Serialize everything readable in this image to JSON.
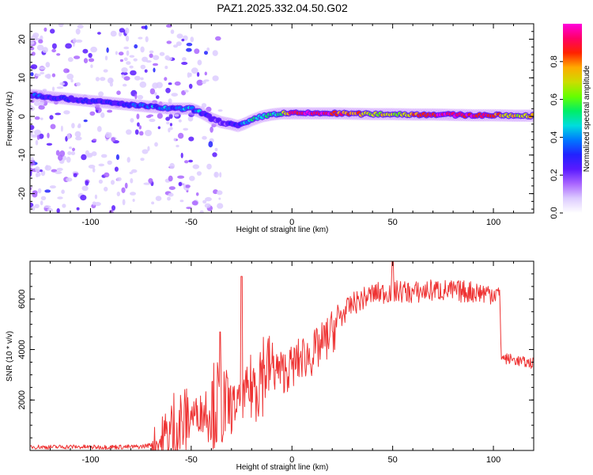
{
  "figure_title": "PAZ1.2025.332.04.50.G02",
  "colors": {
    "snr_line": "#ee3333",
    "frame": "#000000",
    "colormap": [
      "#ffffff",
      "#ddccff",
      "#aa66ff",
      "#5a1aff",
      "#2222ff",
      "#0077ff",
      "#00dddd",
      "#00ee66",
      "#66ff00",
      "#ccdd00",
      "#ffaa00",
      "#ff2200",
      "#ff0066",
      "#ff00dd"
    ]
  },
  "chart_data": [
    {
      "type": "heatmap",
      "title": "",
      "xlabel": "Height of straight line (km)",
      "ylabel": "Frequency (Hz)",
      "xlim": [
        -130,
        120
      ],
      "ylim": [
        -25,
        24
      ],
      "xticks": [
        -100,
        -50,
        0,
        50,
        100
      ],
      "xtick_labels": [
        "-100",
        "-50",
        "0",
        "50",
        "100"
      ],
      "yticks": [
        -20,
        -10,
        0,
        10,
        20
      ],
      "ytick_labels": [
        "-20",
        "-10",
        "0",
        "10",
        "20"
      ],
      "ridge": {
        "description": "dominant spectral component frequency vs height",
        "x": [
          -128,
          -120,
          -110,
          -100,
          -90,
          -80,
          -70,
          -60,
          -50,
          -45,
          -40,
          -35,
          -30,
          -27,
          -24,
          -20,
          -15,
          -10,
          -5,
          0,
          10,
          20,
          30,
          40,
          50,
          60,
          70,
          80,
          90,
          100,
          110,
          120
        ],
        "frequency": [
          5.5,
          5,
          4.5,
          4,
          3.5,
          3,
          2.5,
          2,
          2,
          1,
          -0.5,
          -1.5,
          -2,
          -2.5,
          -2,
          -1,
          0,
          0.5,
          0.8,
          0.8,
          0.8,
          0.8,
          0.7,
          0.6,
          0.6,
          0.5,
          0.5,
          0.4,
          0.3,
          0.3,
          0.2,
          0.2
        ],
        "amplitude": [
          0.3,
          0.3,
          0.28,
          0.27,
          0.3,
          0.32,
          0.38,
          0.4,
          0.38,
          0.35,
          0.22,
          0.22,
          0.25,
          0.3,
          0.45,
          0.5,
          0.5,
          0.5,
          0.55,
          0.95,
          0.95,
          0.9,
          0.8,
          0.7,
          0.65,
          0.75,
          0.9,
          0.95,
          0.95,
          0.8,
          0.7,
          0.7
        ]
      },
      "colorbar": {
        "label": "Normalized spectral amplitude",
        "range": [
          0,
          1
        ],
        "ticks": [
          0,
          0.2,
          0.4,
          0.6,
          0.8
        ],
        "tick_labels": [
          "0.0",
          "0.2",
          "0.4",
          "0.6",
          "0.8"
        ]
      }
    },
    {
      "type": "line",
      "title": "",
      "xlabel": "Height of straight line (km)",
      "ylabel": "SNR (10 * v/v)",
      "xlim": [
        -130,
        120
      ],
      "ylim": [
        0,
        7500
      ],
      "xticks": [
        -100,
        -50,
        0,
        50,
        100
      ],
      "xtick_labels": [
        "-100",
        "-50",
        "0",
        "50",
        "100"
      ],
      "yticks": [
        2000,
        4000,
        6000
      ],
      "ytick_labels": [
        "2000",
        "4000",
        "6000"
      ],
      "series": [
        {
          "name": "SNR",
          "x": [
            -130,
            -120,
            -110,
            -100,
            -90,
            -80,
            -75,
            -70,
            -65,
            -60,
            -55,
            -50,
            -45,
            -40,
            -35,
            -30,
            -25,
            -20,
            -15,
            -10,
            -5,
            0,
            5,
            10,
            15,
            20,
            25,
            30,
            35,
            40,
            45,
            50,
            55,
            60,
            65,
            70,
            75,
            80,
            85,
            90,
            95,
            100,
            103,
            104,
            105,
            110,
            115,
            120
          ],
          "y": [
            150,
            130,
            150,
            130,
            140,
            140,
            150,
            220,
            350,
            600,
            1000,
            1400,
            1500,
            1800,
            1800,
            1700,
            2000,
            2500,
            3200,
            3300,
            3100,
            3300,
            3700,
            3800,
            4200,
            4700,
            5400,
            5800,
            6000,
            6200,
            6250,
            6300,
            6300,
            6250,
            6300,
            6350,
            6350,
            6300,
            6300,
            6300,
            6250,
            6250,
            6200,
            3800,
            3650,
            3600,
            3500,
            3450
          ]
        }
      ]
    }
  ]
}
